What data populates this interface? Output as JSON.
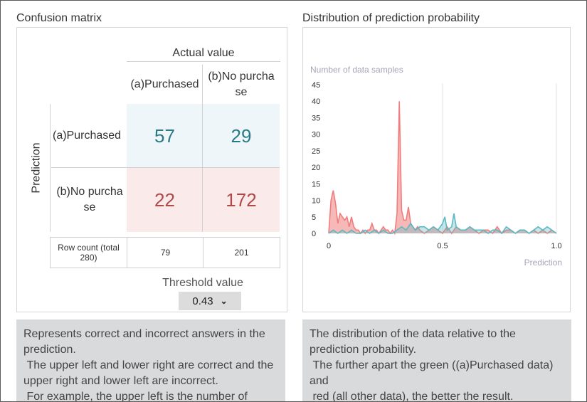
{
  "confusion": {
    "title": "Confusion matrix",
    "actual_label": "Actual value",
    "prediction_label": "Prediction",
    "col_headers": [
      "(a)Purchased",
      "(b)No purcha\nse"
    ],
    "row_headers": [
      "(a)Purchased",
      "(b)No purcha\nse"
    ],
    "cells": [
      [
        "57",
        "29"
      ],
      [
        "22",
        "172"
      ]
    ],
    "row_count_label": "Row count (total\n280)",
    "row_counts": [
      "79",
      "201"
    ],
    "threshold_label": "Threshold value",
    "threshold_value": "0.43"
  },
  "distribution": {
    "title": "Distribution of prediction probability"
  },
  "descriptions": {
    "left": "Represents correct and incorrect answers in the prediction.\n The upper left and lower right are correct and the upper right and lower left are incorrect.\n For example, the upper left is the number of",
    "right": "The distribution of the data relative to the prediction probability.\n The further apart the green ((a)Purchased data) and\n red (all other data), the better the result."
  },
  "colors": {
    "red_series": "#f07d7d",
    "teal_series": "#5bb9c2",
    "cell_top_bg": "#eef6f9",
    "cell_bottom_bg": "#fbeaea"
  },
  "chart_data": {
    "type": "area",
    "title": "",
    "ylabel": "Number of data samples",
    "xlabel": "Prediction",
    "xlim": [
      0,
      1.0
    ],
    "ylim": [
      0,
      45
    ],
    "x_ticks": [
      "0",
      "0.5",
      "1.0"
    ],
    "y_ticks": [
      "0",
      "5",
      "10",
      "15",
      "20",
      "25",
      "30",
      "35",
      "40",
      "45"
    ],
    "grid_x": [
      0.5,
      1.0
    ],
    "series": [
      {
        "color": "#f07d7d",
        "x": [
          0.0,
          0.01,
          0.02,
          0.03,
          0.04,
          0.05,
          0.06,
          0.07,
          0.08,
          0.09,
          0.1,
          0.11,
          0.12,
          0.13,
          0.14,
          0.15,
          0.16,
          0.17,
          0.18,
          0.19,
          0.2,
          0.21,
          0.22,
          0.23,
          0.24,
          0.25,
          0.26,
          0.27,
          0.28,
          0.29,
          0.3,
          0.31,
          0.32,
          0.33,
          0.34,
          0.35,
          0.36,
          0.37,
          0.38,
          0.39,
          0.4,
          0.42,
          0.44,
          0.46,
          0.48,
          0.5,
          0.52,
          0.54,
          0.56,
          0.58,
          0.6,
          0.62,
          0.64,
          0.66,
          0.68,
          0.7,
          0.72,
          0.74,
          0.76,
          0.78,
          0.8,
          0.82,
          0.84,
          0.86,
          0.88,
          0.9,
          0.92,
          0.94,
          0.96,
          0.98,
          1.0
        ],
        "y": [
          0,
          10,
          13,
          9,
          3,
          6,
          5,
          4,
          5,
          2,
          5,
          2,
          1,
          1,
          0,
          1,
          0,
          1,
          1,
          3,
          1,
          1,
          0,
          1,
          2,
          1,
          1,
          0,
          1,
          0,
          6,
          40,
          7,
          4,
          4,
          8,
          3,
          2,
          1,
          2,
          1,
          0,
          1,
          2,
          1,
          0,
          2,
          0,
          2,
          1,
          1,
          2,
          1,
          0,
          1,
          1,
          0,
          2,
          0,
          1,
          1,
          0,
          1,
          1,
          0,
          1,
          0,
          1,
          0,
          1,
          0
        ]
      },
      {
        "color": "#5bb9c2",
        "x": [
          0.0,
          0.02,
          0.04,
          0.06,
          0.08,
          0.1,
          0.12,
          0.14,
          0.16,
          0.18,
          0.2,
          0.22,
          0.24,
          0.26,
          0.28,
          0.3,
          0.32,
          0.34,
          0.36,
          0.38,
          0.4,
          0.42,
          0.44,
          0.46,
          0.48,
          0.5,
          0.51,
          0.52,
          0.54,
          0.55,
          0.56,
          0.58,
          0.6,
          0.62,
          0.64,
          0.66,
          0.68,
          0.7,
          0.72,
          0.74,
          0.76,
          0.78,
          0.8,
          0.82,
          0.84,
          0.86,
          0.88,
          0.9,
          0.92,
          0.94,
          0.96,
          0.98,
          1.0
        ],
        "y": [
          0,
          1,
          0,
          1,
          0,
          1,
          0,
          0,
          1,
          0,
          1,
          0,
          1,
          0,
          0,
          1,
          2,
          1,
          3,
          1,
          2,
          2,
          1,
          2,
          1,
          3,
          5,
          1,
          2,
          6,
          2,
          1,
          1,
          2,
          1,
          1,
          1,
          0,
          1,
          1,
          0,
          2,
          1,
          0,
          1,
          1,
          0,
          1,
          2,
          1,
          2,
          1,
          0
        ]
      }
    ]
  }
}
